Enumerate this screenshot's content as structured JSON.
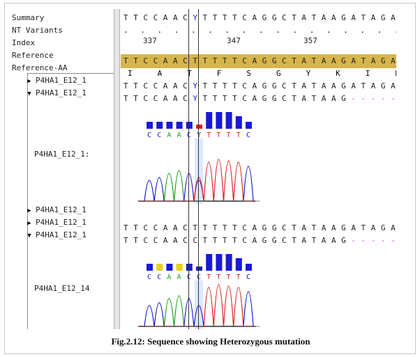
{
  "labels": {
    "summary": "Summary",
    "nt_variants": "NT Variants",
    "index": "Index",
    "reference": "Reference",
    "reference_aa": "Reference-AA"
  },
  "tracks": [
    {
      "label": "P4HA1_E12_1",
      "expanded": false
    },
    {
      "label": "P4HA1_E12_1",
      "expanded": true
    },
    {
      "label": "P4HA1_E12_1",
      "expanded": false
    },
    {
      "label": "P4HA1_E12_1",
      "expanded": false
    },
    {
      "label": "P4HA1_E12_1",
      "expanded": true
    }
  ],
  "chromatogram_labels": [
    "P4HA1_E12_1:",
    "P4HA1_E12_14"
  ],
  "index_numbers": [
    "337",
    "347",
    "357"
  ],
  "summary_seq": "TTCCAACYTTTTCAGGCTATAAGATAGATGT",
  "variants_seq": ". . . . . . . . . . . . . . . . . . . . . . . . . . .",
  "reference_seq": "TTCCAACTTTTTCAGGCTATAAGATAGATGT",
  "reference_aa": [
    "I",
    "A",
    "T",
    "F",
    "S",
    "G",
    "Y",
    "K",
    "I",
    "D"
  ],
  "track_seqs": [
    "TTCCAACYTTTTCAGGCTATAAGATAGATGT",
    "TTCCAACYTTTTCAGGCTATAAG--------",
    "TTCCAACTTTTTCAGGCTATAAGATAGATGT",
    "TTCCAACCTTTTCAGGCTATAAG--------"
  ],
  "chrom_bases_1": "CCAACYTTTTC",
  "chrom_bases_2": "CCAACCTTTTC",
  "caption": "Fig.2.12: Sequence showing Heterozygous mutation",
  "colors": {
    "reference_band": "#d6b54b",
    "a": "#18a018",
    "c": "#1a1ad6",
    "g": "#000000",
    "t": "#e01e1e",
    "gap": "#e040e0"
  }
}
